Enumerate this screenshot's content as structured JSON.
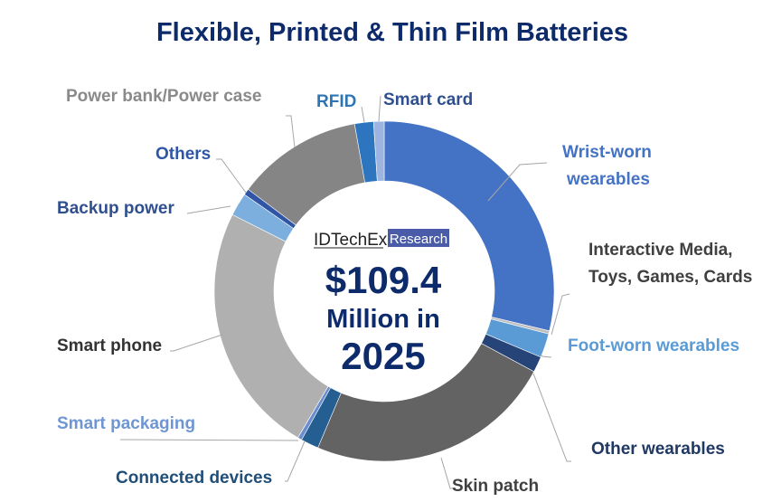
{
  "chart_data": {
    "type": "pie",
    "donut": true,
    "title": "Flexible, Printed & Thin Film Batteries",
    "unit": "share of total (%)",
    "center_text": {
      "brand": "IDTechEx",
      "brand_tag": "Research",
      "value": "$109.4",
      "line2": "Million in",
      "line3": "2025"
    },
    "legend": "none",
    "slices": [
      {
        "label": "Wrist-worn wearables",
        "value": 28.8,
        "color": "#4472c4",
        "label_color": "#4472c4"
      },
      {
        "label": "Interactive Media, Toys, Games, Cards",
        "value": 0.3,
        "color": "#bfbfbf",
        "label_color": "#404040"
      },
      {
        "label": "Foot-worn wearables",
        "value": 2.3,
        "color": "#5b9bd5",
        "label_color": "#5b9bd5"
      },
      {
        "label": "Other wearables",
        "value": 1.5,
        "color": "#264478",
        "label_color": "#1f3864"
      },
      {
        "label": "Skin patch",
        "value": 23.6,
        "color": "#636363",
        "label_color": "#404040"
      },
      {
        "label": "Connected devices",
        "value": 1.7,
        "color": "#255e91",
        "label_color": "#1f4e79"
      },
      {
        "label": "Smart packaging",
        "value": 0.4,
        "color": "#698ed0",
        "label_color": "#6f96d3"
      },
      {
        "label": "Smart phone",
        "value": 24.0,
        "color": "#b0b0b0",
        "label_color": "#333333"
      },
      {
        "label": "Backup power",
        "value": 2.2,
        "color": "#7cafdd",
        "label_color": "#2f4f8f"
      },
      {
        "label": "Others",
        "value": 0.6,
        "color": "#2f55a4",
        "label_color": "#2f55a4"
      },
      {
        "label": "Power bank/Power case",
        "value": 12.0,
        "color": "#858585",
        "label_color": "#8a8a8a"
      },
      {
        "label": "RFID",
        "value": 1.8,
        "color": "#2e75c0",
        "label_color": "#2e75b6"
      },
      {
        "label": "Smart card",
        "value": 1.0,
        "color": "#9db4e0",
        "label_color": "#2f4f8f"
      }
    ]
  }
}
